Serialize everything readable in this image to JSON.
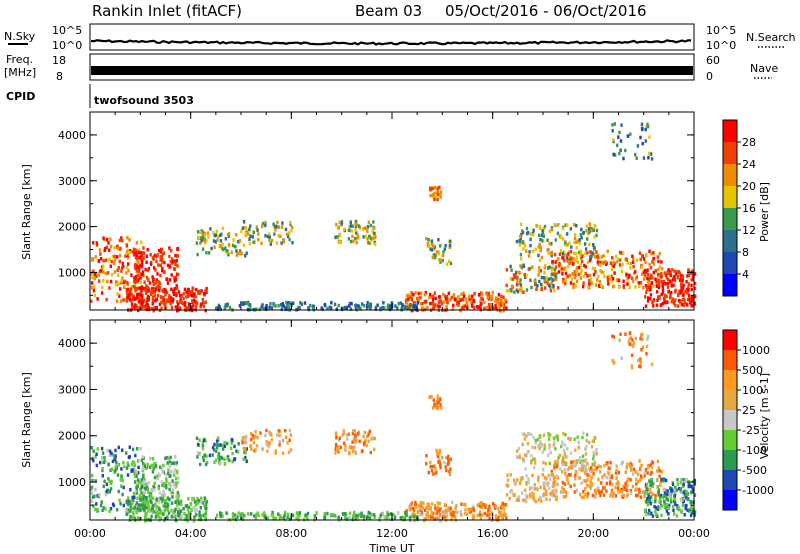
{
  "header": {
    "station": "Rankin Inlet (fitACF)",
    "beam": "Beam 03",
    "date_range": "05/Oct/2016 - 06/Oct/2016"
  },
  "panels": {
    "nsky": {
      "label": "N.Sky",
      "left_top": "10^5",
      "left_bottom": "10^0",
      "right_top": "10^5",
      "right_bottom": "10^0",
      "right_label": "N.Search"
    },
    "freq": {
      "label_line1": "Freq.",
      "label_line2": "[MHz]",
      "left_top": "18",
      "left_bottom": "8",
      "right_top": "60",
      "right_bottom": "0",
      "right_label": "Nave"
    },
    "cpid": {
      "label": "CPID",
      "value": "twofsound 3503"
    }
  },
  "colors": {
    "power": [
      "#0000ff",
      "#1e46b4",
      "#2e6e8e",
      "#3a9a50",
      "#e6c400",
      "#f08c00",
      "#f04000",
      "#ff0000"
    ],
    "velocity": [
      "#ff0000",
      "#ff5a00",
      "#ff9a20",
      "#e8a840",
      "#c8c8c8",
      "#66cc33",
      "#2e9a50",
      "#1e46b4",
      "#0000ff"
    ],
    "ground_scatter": "#c0c0c0"
  },
  "chart_data": [
    {
      "type": "heatmap",
      "name": "power-panel",
      "ylabel": "Slant Range [km]",
      "yticks": [
        "1000",
        "2000",
        "3000",
        "4000"
      ],
      "ylim": [
        180,
        4500
      ],
      "xticks": [
        "00:00",
        "04:00",
        "08:00",
        "12:00",
        "16:00",
        "20:00",
        "00:00"
      ],
      "colorbar": {
        "label": "Power [dB]",
        "ticks": [
          "4",
          "8",
          "12",
          "16",
          "20",
          "24",
          "28"
        ]
      }
    },
    {
      "type": "heatmap",
      "name": "velocity-panel",
      "ylabel": "Slant Range [km]",
      "yticks": [
        "1000",
        "2000",
        "3000",
        "4000"
      ],
      "ylim": [
        180,
        4500
      ],
      "xticks": [
        "00:00",
        "04:00",
        "08:00",
        "12:00",
        "16:00",
        "20:00",
        "00:00"
      ],
      "xlabel": "Time UT",
      "colorbar": {
        "label": "Velocity [m s-1]",
        "ticks": [
          "1000",
          "500",
          "100",
          "25",
          "-25",
          "-100",
          "-500",
          "-1000"
        ]
      }
    }
  ]
}
